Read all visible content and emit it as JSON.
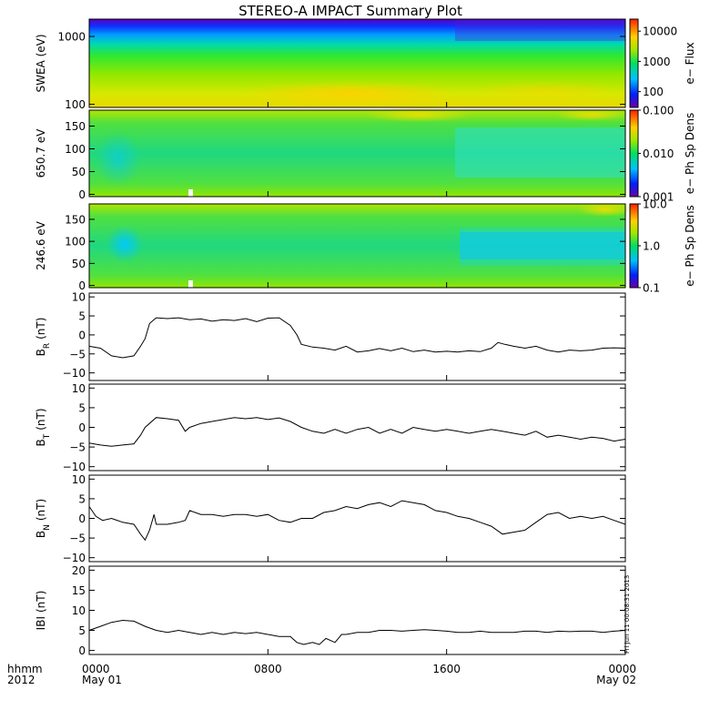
{
  "title": "STEREO-A IMPACT Summary Plot",
  "stamp": "Fri Jun 11 00:08:31 2013",
  "x_axis": {
    "corner_labels": [
      "hhmm",
      "2012"
    ],
    "ticks": [
      {
        "t": 0,
        "line1": "0000",
        "line2": "May 01"
      },
      {
        "t": 8,
        "line1": "0800",
        "line2": ""
      },
      {
        "t": 16,
        "line1": "1600",
        "line2": ""
      },
      {
        "t": 24,
        "line1": "0000",
        "line2": "May 02"
      }
    ],
    "range_hours": [
      0,
      24
    ]
  },
  "chart_data": [
    {
      "type": "heatmap",
      "id": "swea",
      "ylabel": "SWEA (eV)",
      "yscale": "log",
      "ylim": [
        90,
        1800
      ],
      "yticks": [
        {
          "v": 100,
          "label": "100"
        },
        {
          "v": 1000,
          "label": "1000"
        }
      ],
      "colorbar": {
        "label": "e− Flux",
        "scale": "log",
        "range": [
          30,
          25000
        ],
        "ticks": [
          {
            "v": 100,
            "label": "100"
          },
          {
            "v": 1000,
            "label": "1000"
          },
          {
            "v": 10000,
            "label": "10000"
          }
        ]
      }
    },
    {
      "type": "heatmap",
      "id": "pad650",
      "ylabel": "650.7 eV",
      "yscale": "linear",
      "ylim": [
        -5,
        185
      ],
      "yticks": [
        {
          "v": 0,
          "label": "0"
        },
        {
          "v": 50,
          "label": "50"
        },
        {
          "v": 100,
          "label": "100"
        },
        {
          "v": 150,
          "label": "150"
        }
      ],
      "colorbar": {
        "label": "e− Ph Sp Dens",
        "scale": "log",
        "range": [
          0.001,
          0.1
        ],
        "ticks": [
          {
            "v": 0.001,
            "label": "0.001"
          },
          {
            "v": 0.01,
            "label": "0.010"
          },
          {
            "v": 0.1,
            "label": "0.100"
          }
        ]
      }
    },
    {
      "type": "heatmap",
      "id": "pad246",
      "ylabel": "246.6 eV",
      "yscale": "linear",
      "ylim": [
        -5,
        185
      ],
      "yticks": [
        {
          "v": 0,
          "label": "0"
        },
        {
          "v": 50,
          "label": "50"
        },
        {
          "v": 100,
          "label": "100"
        },
        {
          "v": 150,
          "label": "150"
        }
      ],
      "colorbar": {
        "label": "e− Ph Sp Dens",
        "scale": "log",
        "range": [
          0.1,
          10
        ],
        "ticks": [
          {
            "v": 0.1,
            "label": "0.1"
          },
          {
            "v": 1,
            "label": "1.0"
          },
          {
            "v": 10,
            "label": "10.0"
          }
        ]
      }
    },
    {
      "type": "line",
      "id": "br",
      "ylabel": "B",
      "ysub": "R",
      "yunit": "(nT)",
      "ylim": [
        -12,
        11
      ],
      "yticks": [
        {
          "v": -10,
          "label": "−10"
        },
        {
          "v": -5,
          "label": "−5"
        },
        {
          "v": 0,
          "label": "0"
        },
        {
          "v": 5,
          "label": "5"
        },
        {
          "v": 10,
          "label": "10"
        }
      ],
      "x": [
        0,
        0.5,
        1,
        1.5,
        2,
        2.3,
        2.5,
        2.7,
        3,
        3.5,
        4,
        4.5,
        5,
        5.5,
        6,
        6.5,
        7,
        7.5,
        8,
        8.5,
        9,
        9.3,
        9.5,
        10,
        10.5,
        11,
        11.5,
        12,
        12.5,
        13,
        13.5,
        14,
        14.5,
        15,
        15.5,
        16,
        16.5,
        17,
        17.5,
        18,
        18.3,
        18.6,
        19,
        19.5,
        20,
        20.5,
        21,
        21.5,
        22,
        22.5,
        23,
        23.5,
        24
      ],
      "y": [
        -3,
        -3.5,
        -5.5,
        -6,
        -5.5,
        -3,
        -1,
        3,
        4.5,
        4.3,
        4.5,
        4,
        4.2,
        3.6,
        4,
        3.8,
        4.3,
        3.5,
        4.4,
        4.5,
        2.5,
        0,
        -2.5,
        -3.2,
        -3.5,
        -4,
        -3,
        -4.5,
        -4.2,
        -3.6,
        -4.2,
        -3.5,
        -4.4,
        -4,
        -4.5,
        -4.3,
        -4.5,
        -4.2,
        -4.4,
        -3.5,
        -2,
        -2.5,
        -3,
        -3.5,
        -3,
        -4,
        -4.5,
        -4,
        -4.2,
        -4,
        -3.5,
        -3.4,
        -3.5
      ]
    },
    {
      "type": "line",
      "id": "bt",
      "ylabel": "B",
      "ysub": "T",
      "yunit": "(nT)",
      "ylim": [
        -11,
        11
      ],
      "yticks": [
        {
          "v": -10,
          "label": "−10"
        },
        {
          "v": -5,
          "label": "−5"
        },
        {
          "v": 0,
          "label": "0"
        },
        {
          "v": 5,
          "label": "5"
        },
        {
          "v": 10,
          "label": "10"
        }
      ],
      "x": [
        0,
        0.5,
        1,
        1.5,
        2,
        2.3,
        2.5,
        3,
        3.5,
        4,
        4.3,
        4.5,
        5,
        5.5,
        6,
        6.5,
        7,
        7.5,
        8,
        8.5,
        9,
        9.5,
        10,
        10.5,
        11,
        11.5,
        12,
        12.5,
        13,
        13.5,
        14,
        14.5,
        15,
        15.5,
        16,
        16.5,
        17,
        17.5,
        18,
        18.5,
        19,
        19.5,
        20,
        20.5,
        21,
        21.5,
        22,
        22.5,
        23,
        23.5,
        24
      ],
      "y": [
        -4,
        -4.5,
        -4.8,
        -4.5,
        -4.2,
        -2,
        0,
        2.5,
        2.2,
        1.8,
        -1,
        0,
        1,
        1.5,
        2,
        2.5,
        2.2,
        2.5,
        2,
        2.4,
        1.5,
        0,
        -1,
        -1.5,
        -0.5,
        -1.5,
        -0.5,
        0,
        -1.5,
        -0.5,
        -1.5,
        0,
        -0.5,
        -1,
        -0.5,
        -1,
        -1.5,
        -1,
        -0.5,
        -1,
        -1.5,
        -2,
        -1,
        -2.5,
        -2,
        -2.5,
        -3,
        -2.5,
        -2.8,
        -3.5,
        -3
      ]
    },
    {
      "type": "line",
      "id": "bn",
      "ylabel": "B",
      "ysub": "N",
      "yunit": "(nT)",
      "ylim": [
        -11,
        11
      ],
      "yticks": [
        {
          "v": -10,
          "label": "−10"
        },
        {
          "v": -5,
          "label": "−5"
        },
        {
          "v": 0,
          "label": "0"
        },
        {
          "v": 5,
          "label": "5"
        },
        {
          "v": 10,
          "label": "10"
        }
      ],
      "x": [
        0,
        0.3,
        0.6,
        1,
        1.5,
        2,
        2.3,
        2.5,
        2.7,
        2.9,
        3,
        3.5,
        4,
        4.3,
        4.5,
        5,
        5.5,
        6,
        6.5,
        7,
        7.5,
        8,
        8.5,
        9,
        9.5,
        10,
        10.5,
        11,
        11.5,
        12,
        12.5,
        13,
        13.5,
        14,
        14.5,
        15,
        15.5,
        16,
        16.5,
        17,
        17.5,
        18,
        18.5,
        19,
        19.5,
        20,
        20.5,
        21,
        21.5,
        22,
        22.5,
        23,
        23.5,
        24
      ],
      "y": [
        3,
        0.5,
        -0.5,
        0,
        -1,
        -1.5,
        -4,
        -5.5,
        -3,
        1,
        -1.5,
        -1.5,
        -1,
        -0.5,
        2,
        1,
        1,
        0.5,
        1,
        1,
        0.5,
        1,
        -0.5,
        -1,
        0,
        0,
        1.5,
        2,
        3,
        2.5,
        3.5,
        4,
        3,
        4.5,
        4,
        3.5,
        2,
        1.5,
        0.5,
        0,
        -1,
        -2,
        -4,
        -3.5,
        -3,
        -1,
        1,
        1.5,
        0,
        0.5,
        0,
        0.5,
        -0.5,
        -1.5
      ]
    },
    {
      "type": "line",
      "id": "bmag",
      "ylabel": "IBI",
      "ysub": "",
      "yunit": "(nT)",
      "ylim": [
        -1,
        21
      ],
      "yticks": [
        {
          "v": 0,
          "label": "0"
        },
        {
          "v": 5,
          "label": "5"
        },
        {
          "v": 10,
          "label": "10"
        },
        {
          "v": 15,
          "label": "15"
        },
        {
          "v": 20,
          "label": "20"
        }
      ],
      "x": [
        0,
        0.5,
        1,
        1.5,
        2,
        2.5,
        3,
        3.5,
        4,
        4.5,
        5,
        5.5,
        6,
        6.5,
        7,
        7.5,
        8,
        8.5,
        9,
        9.3,
        9.6,
        10,
        10.3,
        10.6,
        11,
        11.3,
        11.5,
        12,
        12.5,
        13,
        13.5,
        14,
        14.5,
        15,
        15.5,
        16,
        16.5,
        17,
        17.5,
        18,
        18.5,
        19,
        19.5,
        20,
        20.5,
        21,
        21.5,
        22,
        22.5,
        23,
        23.5,
        24
      ],
      "y": [
        5,
        6,
        7,
        7.5,
        7.3,
        6,
        5,
        4.5,
        5,
        4.5,
        4,
        4.5,
        4,
        4.5,
        4.2,
        4.5,
        4,
        3.5,
        3.5,
        2,
        1.5,
        2,
        1.5,
        3,
        2,
        4,
        4,
        4.5,
        4.5,
        5,
        5,
        4.8,
        5,
        5.2,
        5,
        4.8,
        4.5,
        4.5,
        4.8,
        4.5,
        4.5,
        4.5,
        4.8,
        4.8,
        4.5,
        4.8,
        4.7,
        4.8,
        4.8,
        4.5,
        4.8,
        5
      ]
    }
  ],
  "colors": {
    "line": "#000000",
    "bar_gap": "#ffffff"
  }
}
